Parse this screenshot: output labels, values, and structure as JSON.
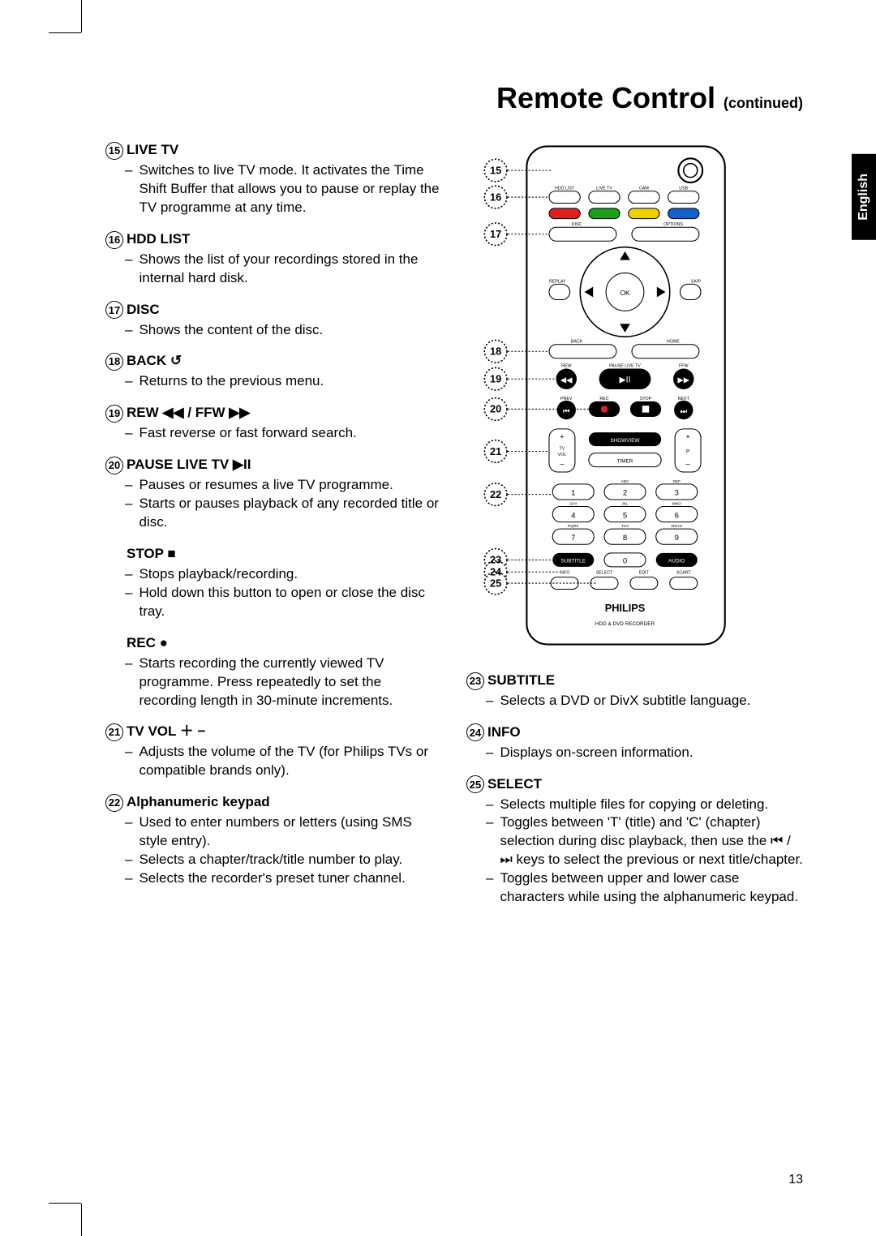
{
  "title_main": "Remote Control",
  "title_cont": "(continued)",
  "language_tab": "English",
  "page_number": "13",
  "left_entries": [
    {
      "num": "15",
      "head": "LIVE TV",
      "items": [
        "Switches to live TV mode.  It activates the Time Shift Buffer that allows you to pause or replay the  TV programme at any time."
      ]
    },
    {
      "num": "16",
      "head": "HDD LIST",
      "items": [
        "Shows the list of your recordings stored in the internal hard disk."
      ]
    },
    {
      "num": "17",
      "head": "DISC",
      "items": [
        "Shows the content of the disc."
      ]
    },
    {
      "num": "18",
      "head": "BACK ↺",
      "items": [
        "Returns to the previous menu."
      ]
    },
    {
      "num": "19",
      "head": "REW ◀◀ / FFW ▶▶",
      "items": [
        "Fast reverse or fast forward search."
      ]
    },
    {
      "num": "20",
      "head": "PAUSE LIVE TV ▶II",
      "items": [
        "Pauses or resumes a live TV programme.",
        "Starts or pauses playback of any recorded title or disc."
      ]
    },
    {
      "num": "",
      "head": "STOP ■",
      "items": [
        "Stops playback/recording.",
        "Hold down this button to open or close the disc tray."
      ]
    },
    {
      "num": "",
      "head": "REC ●",
      "items": [
        "Starts recording the currently viewed TV programme. Press repeatedly to set the recording length in 30-minute increments."
      ]
    },
    {
      "num": "21",
      "head": "TV VOL ＋ −",
      "items": [
        "Adjusts the volume of the TV (for Philips TVs or compatible brands only)."
      ]
    },
    {
      "num": "22",
      "head": "Alphanumeric keypad",
      "items": [
        "Used to enter numbers or letters (using SMS style entry).",
        "Selects a chapter/track/title number to play.",
        "Selects the recorder's preset tuner channel."
      ]
    }
  ],
  "right_entries": [
    {
      "num": "23",
      "head": "SUBTITLE",
      "items": [
        "Selects a DVD or DivX subtitle language."
      ]
    },
    {
      "num": "24",
      "head": "INFO",
      "items": [
        "Displays on-screen information."
      ]
    },
    {
      "num": "25",
      "head": "SELECT",
      "items": [
        "Selects multiple files for copying or deleting.",
        "Toggles between 'T' (title) and 'C' (chapter) selection during disc playback, then use the  ⏮ / ⏭  keys to select the previous or next title/chapter.",
        "Toggles between upper and lower case characters while using the alphanumeric keypad."
      ]
    }
  ],
  "remote": {
    "outline_color": "#000000",
    "bg": "#ffffff",
    "callouts": [
      "15",
      "16",
      "17",
      "18",
      "19",
      "20",
      "21",
      "22",
      "23",
      "24",
      "25"
    ],
    "row_labels": {
      "row1": [
        "HDD LIST",
        "LIVE TV",
        "CAM",
        "USB"
      ],
      "disc": "DISC",
      "options": "OPTIONS",
      "replay": "REPLAY",
      "ok": "OK",
      "skip": "SKIP",
      "back": "BACK",
      "home": "HOME",
      "rew": "REW",
      "pauselivetv": "PAUSE LIVE TV",
      "ffw": "FFW",
      "prev": "PREV",
      "next": "NEXT",
      "rec": "REC",
      "stop": "STOP",
      "tvvol": "TV\nVOL",
      "showview": "SHOWVIEW",
      "timer": "TIMER",
      "p": "P",
      "keypad": [
        [
          "1",
          ""
        ],
        [
          "2",
          "ABC"
        ],
        [
          "3",
          "DEF"
        ],
        [
          "4",
          "GHI"
        ],
        [
          "5",
          "JKL"
        ],
        [
          "6",
          "MNO"
        ],
        [
          "7",
          "PQRS"
        ],
        [
          "8",
          "TUV"
        ],
        [
          "9",
          "WXYZ"
        ],
        [
          "0",
          ""
        ]
      ],
      "subtitle": "SUBTITLE",
      "audio": "AUDIO",
      "info": "INFO",
      "select": "SELECT",
      "edit": "EDIT",
      "scart": "SCART",
      "brand": "PHILIPS",
      "footer": "HDD & DVD RECORDER"
    }
  }
}
